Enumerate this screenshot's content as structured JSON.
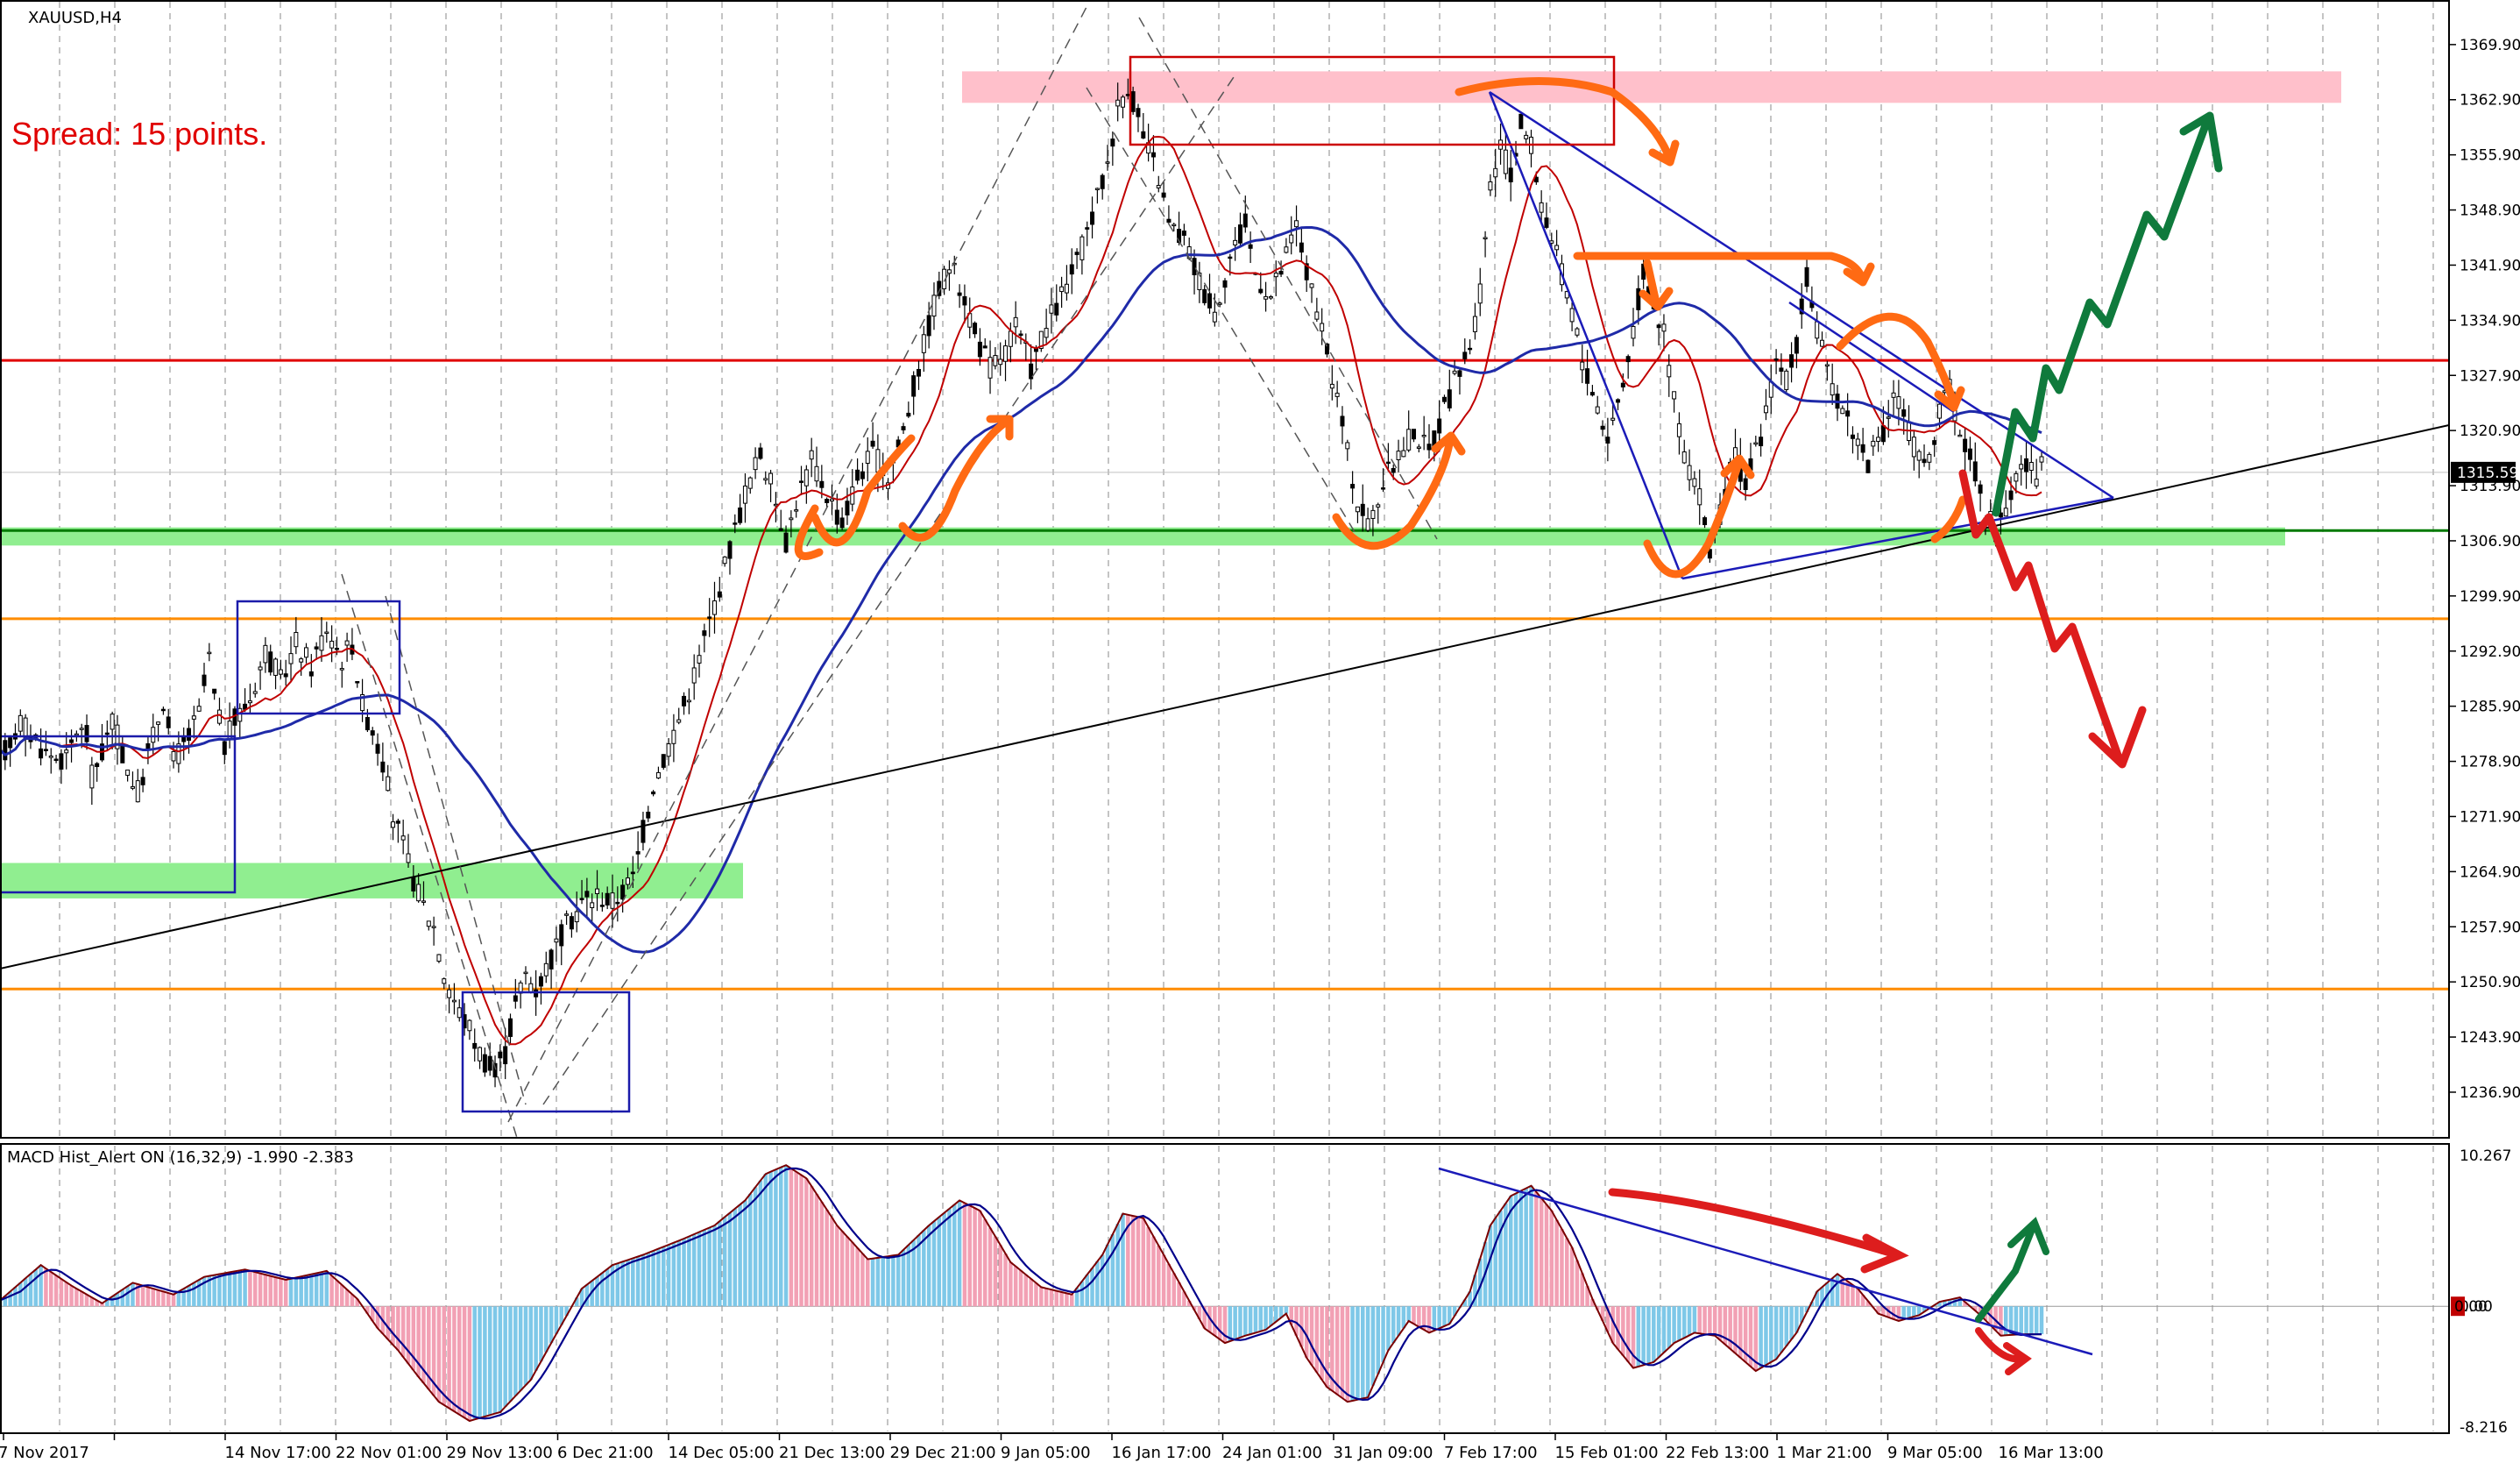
{
  "window": {
    "symbol_title": "XAUUSD,H4",
    "spread_note": "Spread: 15 points."
  },
  "chart_data": [
    {
      "type": "candlestick",
      "title": "XAUUSD,H4",
      "ylim": [
        1232,
        1374
      ],
      "y_ticks": [
        "1369.90",
        "1362.90",
        "1355.90",
        "1348.90",
        "1341.90",
        "1334.90",
        "1327.90",
        "1320.90",
        "1313.90",
        "1306.90",
        "1299.90",
        "1292.90",
        "1285.90",
        "1278.90",
        "1271.90",
        "1264.90",
        "1257.90",
        "1250.90",
        "1243.90",
        "1236.90"
      ],
      "x_ticks": [
        "7 Nov 2017",
        "14 Nov 17:00",
        "22 Nov 01:00",
        "29 Nov 13:00",
        "6 Dec 21:00",
        "14 Dec 05:00",
        "21 Dec 13:00",
        "29 Dec 21:00",
        "9 Jan 05:00",
        "16 Jan 17:00",
        "24 Jan 01:00",
        "31 Jan 09:00",
        "7 Feb 17:00",
        "15 Feb 01:00",
        "22 Feb 13:00",
        "1 Mar 21:00",
        "9 Mar 05:00",
        "16 Mar 13:00"
      ],
      "current_price_label": "1315.59",
      "price_path": [
        [
          0,
          1279
        ],
        [
          4,
          1284
        ],
        [
          9,
          1280
        ],
        [
          13,
          1279
        ],
        [
          15,
          1283
        ],
        [
          17,
          1282
        ],
        [
          18,
          1277
        ],
        [
          20,
          1280
        ],
        [
          22,
          1284
        ],
        [
          25,
          1278
        ],
        [
          27,
          1275
        ],
        [
          30,
          1282
        ],
        [
          32,
          1287
        ],
        [
          34,
          1279
        ],
        [
          37,
          1282
        ],
        [
          39,
          1285
        ],
        [
          41,
          1292
        ],
        [
          42,
          1287
        ],
        [
          44,
          1281
        ],
        [
          46,
          1284
        ],
        [
          49,
          1287
        ],
        [
          52,
          1293
        ],
        [
          55,
          1289
        ],
        [
          58,
          1294
        ],
        [
          61,
          1291
        ],
        [
          64,
          1296
        ],
        [
          67,
          1292
        ],
        [
          69,
          1294
        ],
        [
          71,
          1286
        ],
        [
          73,
          1283
        ],
        [
          75,
          1279
        ],
        [
          77,
          1272
        ],
        [
          79,
          1268
        ],
        [
          82,
          1262
        ],
        [
          85,
          1258
        ],
        [
          87,
          1252
        ],
        [
          90,
          1247
        ],
        [
          92,
          1245
        ],
        [
          94,
          1242
        ],
        [
          97,
          1239
        ],
        [
          99,
          1242
        ],
        [
          101,
          1248
        ],
        [
          103,
          1252
        ],
        [
          105,
          1250
        ],
        [
          108,
          1254
        ],
        [
          111,
          1258
        ],
        [
          114,
          1261
        ],
        [
          117,
          1262
        ],
        [
          120,
          1261
        ],
        [
          124,
          1264
        ],
        [
          126,
          1270
        ],
        [
          128,
          1276
        ],
        [
          131,
          1281
        ],
        [
          134,
          1286
        ],
        [
          137,
          1292
        ],
        [
          140,
          1299
        ],
        [
          143,
          1306
        ],
        [
          146,
          1313
        ],
        [
          149,
          1318
        ],
        [
          152,
          1312
        ],
        [
          154,
          1307
        ],
        [
          156,
          1312
        ],
        [
          159,
          1317
        ],
        [
          162,
          1313
        ],
        [
          165,
          1309
        ],
        [
          168,
          1315
        ],
        [
          171,
          1318
        ],
        [
          174,
          1315
        ],
        [
          177,
          1321
        ],
        [
          180,
          1329
        ],
        [
          183,
          1337
        ],
        [
          186,
          1342
        ],
        [
          189,
          1338
        ],
        [
          191,
          1333
        ],
        [
          194,
          1329
        ],
        [
          197,
          1331
        ],
        [
          199,
          1334
        ],
        [
          202,
          1329
        ],
        [
          205,
          1334
        ],
        [
          208,
          1338
        ],
        [
          211,
          1342
        ],
        [
          214,
          1348
        ],
        [
          217,
          1355
        ],
        [
          219,
          1362
        ],
        [
          221,
          1365
        ],
        [
          224,
          1358
        ],
        [
          227,
          1353
        ],
        [
          229,
          1347
        ],
        [
          232,
          1345
        ],
        [
          235,
          1340
        ],
        [
          238,
          1336
        ],
        [
          241,
          1343
        ],
        [
          244,
          1347
        ],
        [
          246,
          1341
        ],
        [
          249,
          1338
        ],
        [
          252,
          1343
        ],
        [
          254,
          1347
        ],
        [
          256,
          1341
        ],
        [
          259,
          1333
        ],
        [
          262,
          1325
        ],
        [
          264,
          1318
        ],
        [
          266,
          1312
        ],
        [
          268,
          1309
        ],
        [
          271,
          1314
        ],
        [
          274,
          1318
        ],
        [
          277,
          1321
        ],
        [
          280,
          1318
        ],
        [
          282,
          1322
        ],
        [
          285,
          1327
        ],
        [
          288,
          1332
        ],
        [
          290,
          1338
        ],
        [
          292,
          1352
        ],
        [
          294,
          1357
        ],
        [
          296,
          1353
        ],
        [
          298,
          1360
        ],
        [
          300,
          1357
        ],
        [
          302,
          1350
        ],
        [
          305,
          1343
        ],
        [
          308,
          1336
        ],
        [
          310,
          1330
        ],
        [
          313,
          1324
        ],
        [
          315,
          1320
        ],
        [
          318,
          1327
        ],
        [
          320,
          1334
        ],
        [
          322,
          1341
        ],
        [
          324,
          1337
        ],
        [
          326,
          1333
        ],
        [
          328,
          1325
        ],
        [
          330,
          1318
        ],
        [
          333,
          1312
        ],
        [
          335,
          1306
        ],
        [
          337,
          1310
        ],
        [
          340,
          1318
        ],
        [
          342,
          1314
        ],
        [
          344,
          1318
        ],
        [
          346,
          1323
        ],
        [
          348,
          1330
        ],
        [
          350,
          1327
        ],
        [
          352,
          1332
        ],
        [
          354,
          1340
        ],
        [
          356,
          1334
        ],
        [
          358,
          1328
        ],
        [
          361,
          1324
        ],
        [
          363,
          1321
        ],
        [
          366,
          1317
        ],
        [
          369,
          1320
        ],
        [
          371,
          1326
        ],
        [
          373,
          1323
        ],
        [
          375,
          1319
        ],
        [
          377,
          1316
        ],
        [
          380,
          1323
        ],
        [
          382,
          1326
        ],
        [
          384,
          1321
        ],
        [
          387,
          1316
        ],
        [
          389,
          1311
        ],
        [
          391,
          1308
        ],
        [
          394,
          1313
        ],
        [
          396,
          1317
        ],
        [
          399,
          1315
        ],
        [
          400,
          1316
        ]
      ],
      "moving_averages": [
        "short (red)",
        "long (blue)"
      ],
      "horizontal_levels": [
        {
          "price": 1329.8,
          "color": "#e00000"
        },
        {
          "price": 1308.2,
          "color": "#007a00"
        },
        {
          "price": 1297.0,
          "color": "#ff8c00"
        },
        {
          "price": 1250.0,
          "color": "#ff8c00"
        }
      ],
      "zones": [
        {
          "from": 1362.5,
          "to": 1366.5,
          "color": "#ffc0cb"
        },
        {
          "from": 1306.3,
          "to": 1308.6,
          "color": "#90ee90"
        },
        {
          "from": 1261.5,
          "to": 1266.0,
          "color": "#90ee90"
        }
      ]
    },
    {
      "type": "histogram",
      "title": "MACD Hist_Alert ON (16,32,9)  -1.990 -2.383",
      "ylim": [
        -8.216,
        10.267
      ],
      "y_ticks": [
        "10.267",
        "0.00",
        "-8.216"
      ],
      "current_value_label": "0.00",
      "macd_path": [
        [
          0,
          0.4
        ],
        [
          8,
          2.8
        ],
        [
          14,
          1.4
        ],
        [
          20,
          0.2
        ],
        [
          26,
          1.6
        ],
        [
          34,
          0.8
        ],
        [
          40,
          2.0
        ],
        [
          48,
          2.5
        ],
        [
          56,
          1.8
        ],
        [
          64,
          2.4
        ],
        [
          70,
          0.5
        ],
        [
          74,
          -1.5
        ],
        [
          78,
          -3.0
        ],
        [
          82,
          -4.8
        ],
        [
          86,
          -6.5
        ],
        [
          92,
          -7.8
        ],
        [
          98,
          -7.2
        ],
        [
          104,
          -5.0
        ],
        [
          108,
          -2.5
        ],
        [
          114,
          1.2
        ],
        [
          120,
          2.8
        ],
        [
          126,
          3.5
        ],
        [
          134,
          4.6
        ],
        [
          140,
          5.5
        ],
        [
          146,
          7.2
        ],
        [
          150,
          9.0
        ],
        [
          154,
          9.6
        ],
        [
          158,
          8.7
        ],
        [
          164,
          5.5
        ],
        [
          170,
          3.2
        ],
        [
          176,
          3.5
        ],
        [
          182,
          5.5
        ],
        [
          188,
          7.2
        ],
        [
          192,
          6.5
        ],
        [
          198,
          3.0
        ],
        [
          204,
          1.3
        ],
        [
          210,
          0.8
        ],
        [
          216,
          3.5
        ],
        [
          220,
          6.3
        ],
        [
          224,
          6.0
        ],
        [
          228,
          3.5
        ],
        [
          232,
          1.0
        ],
        [
          236,
          -1.5
        ],
        [
          240,
          -2.5
        ],
        [
          244,
          -2.0
        ],
        [
          248,
          -1.6
        ],
        [
          252,
          -0.5
        ],
        [
          256,
          -3.5
        ],
        [
          260,
          -5.5
        ],
        [
          264,
          -6.5
        ],
        [
          268,
          -6.2
        ],
        [
          272,
          -3.0
        ],
        [
          276,
          -1.0
        ],
        [
          280,
          -1.8
        ],
        [
          284,
          -1.2
        ],
        [
          288,
          1.0
        ],
        [
          292,
          5.5
        ],
        [
          296,
          7.5
        ],
        [
          300,
          8.2
        ],
        [
          304,
          6.5
        ],
        [
          308,
          4.0
        ],
        [
          312,
          0.5
        ],
        [
          316,
          -2.5
        ],
        [
          320,
          -4.2
        ],
        [
          324,
          -3.8
        ],
        [
          328,
          -2.5
        ],
        [
          332,
          -1.8
        ],
        [
          336,
          -2.0
        ],
        [
          340,
          -3.2
        ],
        [
          344,
          -4.4
        ],
        [
          348,
          -3.6
        ],
        [
          352,
          -1.8
        ],
        [
          356,
          1.0
        ],
        [
          360,
          2.2
        ],
        [
          364,
          1.2
        ],
        [
          368,
          -0.5
        ],
        [
          372,
          -1.0
        ],
        [
          376,
          -0.6
        ],
        [
          380,
          0.3
        ],
        [
          384,
          0.6
        ],
        [
          388,
          -0.6
        ],
        [
          392,
          -2.0
        ],
        [
          396,
          -1.9
        ],
        [
          400,
          -1.9
        ]
      ]
    }
  ]
}
